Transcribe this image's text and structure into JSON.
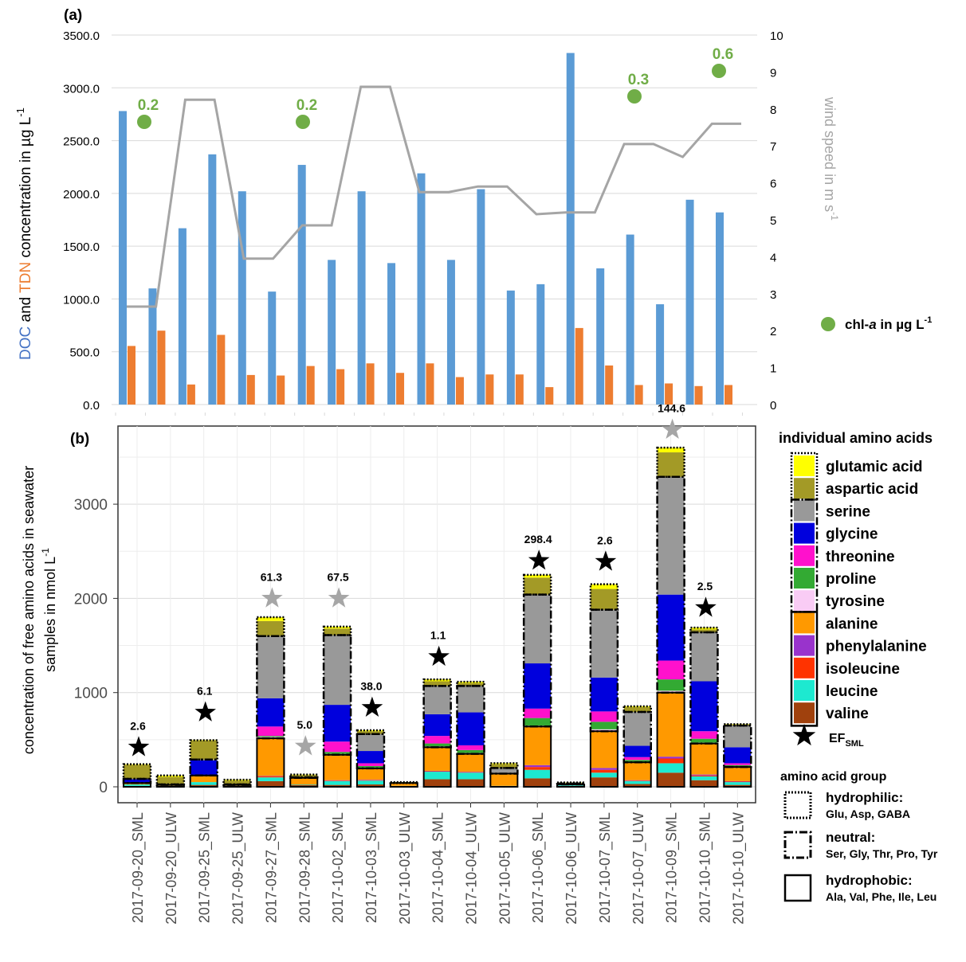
{
  "colors": {
    "doc": "#5b9bd5",
    "tdn": "#ed7d31",
    "wind": "#a5a5a5",
    "chla": "#70ad47",
    "grid": "#d9d9d9",
    "grid_b": "#e6e6e6",
    "axis_grey": "#7f7f7f",
    "star_black": "#000000",
    "star_grey": "#a6a6a6"
  },
  "panel_a": {
    "label": "(a)",
    "ylabel_left_parts": [
      {
        "text": "DOC",
        "color": "#4472c4"
      },
      {
        "text": " and ",
        "color": "#000000"
      },
      {
        "text": "TDN",
        "color": "#ed7d31"
      },
      {
        "text": " concentration in µg L",
        "color": "#000000"
      }
    ],
    "ylabel_left_sup": "-1",
    "ylabel_right": "wind speed in m s",
    "ylabel_right_sup": "-1",
    "legend_chla_prefix": "chl-",
    "legend_chla_italic": "a",
    "legend_chla_suffix": " in µg L",
    "legend_chla_sup": "-1"
  },
  "panel_b": {
    "label": "(b)",
    "ylabel_line1": "concentration of free amino acids in seawater",
    "ylabel_line2": "samples in nmol L",
    "ylabel_sup": "-1",
    "legend_title": "individual amino acids",
    "ef_label": "EF",
    "ef_sub": "SML",
    "group_title": "amino acid group",
    "groups": [
      {
        "name": "hydrophilic:",
        "members": "Glu, Asp, GABA",
        "style": "dotted"
      },
      {
        "name": "neutral:",
        "members": "Ser, Gly, Thr, Pro, Tyr",
        "style": "dashdot"
      },
      {
        "name": "hydrophobic:",
        "members": "Ala, Val, Phe, Ile, Leu",
        "style": "solid"
      }
    ]
  },
  "chart_data": [
    {
      "type": "bar",
      "panel": "a",
      "title": "",
      "ylabel": "DOC and TDN concentration in µg L-1",
      "ylabel_right": "wind speed in m s-1",
      "ylim": [
        0,
        3500
      ],
      "ylim_right": [
        0,
        10
      ],
      "yticks": [
        "0.0",
        "500.0",
        "1000.0",
        "1500.0",
        "2000.0",
        "2500.0",
        "3000.0",
        "3500.0"
      ],
      "yticks_right": [
        "0",
        "1",
        "2",
        "3",
        "4",
        "5",
        "6",
        "7",
        "8",
        "9",
        "10"
      ],
      "n_points": 21,
      "series": [
        {
          "name": "DOC",
          "kind": "bar",
          "values": [
            2780,
            1100,
            1670,
            2370,
            2020,
            1070,
            2270,
            1370,
            2020,
            1340,
            2190,
            1370,
            2040,
            1080,
            1140,
            3330,
            1290,
            1610,
            950,
            1940,
            1820
          ]
        },
        {
          "name": "TDN",
          "kind": "bar",
          "values": [
            555,
            700,
            190,
            660,
            280,
            275,
            365,
            335,
            390,
            300,
            390,
            260,
            285,
            285,
            165,
            725,
            370,
            185,
            200,
            175,
            185
          ]
        },
        {
          "name": "wind speed",
          "kind": "line",
          "values": [
            2.65,
            2.65,
            8.25,
            8.25,
            3.95,
            3.95,
            4.85,
            4.85,
            8.6,
            8.6,
            5.75,
            5.75,
            5.9,
            5.9,
            5.15,
            5.2,
            5.2,
            7.05,
            7.05,
            6.7,
            7.6,
            7.6
          ]
        },
        {
          "name": "chl-a",
          "kind": "point",
          "points": [
            {
              "index": 0,
              "value": 0.2,
              "label": "0.2"
            },
            {
              "index": 6,
              "value": 0.2,
              "label": "0.2"
            },
            {
              "index": 17,
              "value": 0.3,
              "label": "0.3"
            },
            {
              "index": 20,
              "value": 0.6,
              "label": "0.6"
            }
          ]
        }
      ]
    },
    {
      "type": "bar",
      "panel": "b",
      "stacked": true,
      "ylabel": "concentration of free amino acids in seawater samples in nmol L-1",
      "ylim": [
        -150,
        3800
      ],
      "yticks": [
        0,
        1000,
        2000,
        3000
      ],
      "categories": [
        "2017-09-20_SML",
        "2017-09-20_ULW",
        "2017-09-25_SML",
        "2017-09-25_ULW",
        "2017-09-27_SML",
        "2017-09-28_SML",
        "2017-10-02_SML",
        "2017-10-03_SML",
        "2017-10-03_ULW",
        "2017-10-04_SML",
        "2017-10-04_ULW",
        "2017-10-05_ULW",
        "2017-10-06_SML",
        "2017-10-06_ULW",
        "2017-10-07_SML",
        "2017-10-07_ULW",
        "2017-10-09_SML",
        "2017-10-10_SML",
        "2017-10-10_ULW"
      ],
      "species": [
        {
          "name": "valine",
          "color": "#a0410d"
        },
        {
          "name": "leucine",
          "color": "#1de9d0"
        },
        {
          "name": "isoleucine",
          "color": "#ff3300"
        },
        {
          "name": "phenylalanine",
          "color": "#9933cc"
        },
        {
          "name": "alanine",
          "color": "#ff9900"
        },
        {
          "name": "tyrosine",
          "color": "#f9ccf5"
        },
        {
          "name": "proline",
          "color": "#33aa33"
        },
        {
          "name": "threonine",
          "color": "#ff11cc"
        },
        {
          "name": "glycine",
          "color": "#0000dd"
        },
        {
          "name": "serine",
          "color": "#999999"
        },
        {
          "name": "aspartic acid",
          "color": "#a39a26"
        },
        {
          "name": "glutamic acid",
          "color": "#ffff00"
        }
      ],
      "legend_order": [
        "glutamic acid",
        "aspartic acid",
        "serine",
        "glycine",
        "threonine",
        "proline",
        "tyrosine",
        "alanine",
        "phenylalanine",
        "isoleucine",
        "leucine",
        "valine"
      ],
      "legend_styles": [
        "dotted",
        "dotted",
        "dashdot",
        "dashdot",
        "dashdot",
        "dashdot",
        "dashdot",
        "solid",
        "solid",
        "solid",
        "solid",
        "solid"
      ],
      "values": [
        [
          10,
          15,
          0,
          0,
          15,
          0,
          0,
          0,
          40,
          5,
          150,
          5
        ],
        [
          5,
          5,
          0,
          0,
          10,
          0,
          0,
          0,
          0,
          5,
          80,
          15
        ],
        [
          20,
          30,
          0,
          0,
          70,
          0,
          0,
          0,
          160,
          10,
          200,
          5
        ],
        [
          5,
          5,
          0,
          0,
          10,
          0,
          0,
          0,
          0,
          5,
          40,
          10
        ],
        [
          60,
          40,
          10,
          5,
          400,
          15,
          10,
          100,
          300,
          660,
          160,
          40
        ],
        [
          20,
          5,
          0,
          0,
          70,
          0,
          0,
          0,
          0,
          5,
          25,
          5
        ],
        [
          20,
          40,
          5,
          5,
          270,
          10,
          20,
          110,
          390,
          740,
          70,
          20
        ],
        [
          25,
          40,
          5,
          5,
          120,
          5,
          20,
          30,
          130,
          180,
          30,
          10
        ],
        [
          5,
          5,
          0,
          0,
          30,
          0,
          0,
          0,
          0,
          0,
          5,
          5
        ],
        [
          80,
          80,
          5,
          5,
          250,
          10,
          30,
          80,
          230,
          300,
          50,
          20
        ],
        [
          80,
          70,
          5,
          5,
          190,
          10,
          30,
          50,
          350,
          280,
          30,
          15
        ],
        [
          5,
          5,
          0,
          0,
          130,
          0,
          0,
          0,
          0,
          60,
          40,
          10
        ],
        [
          90,
          90,
          30,
          20,
          410,
          10,
          80,
          100,
          480,
          730,
          180,
          30
        ],
        [
          10,
          10,
          0,
          0,
          5,
          0,
          0,
          0,
          0,
          10,
          5,
          5
        ],
        [
          100,
          50,
          30,
          20,
          390,
          20,
          80,
          110,
          360,
          720,
          220,
          50
        ],
        [
          30,
          30,
          5,
          5,
          190,
          5,
          20,
          30,
          120,
          360,
          50,
          10
        ],
        [
          150,
          100,
          50,
          20,
          680,
          20,
          120,
          200,
          700,
          1250,
          260,
          50
        ],
        [
          70,
          40,
          10,
          10,
          330,
          10,
          40,
          80,
          530,
          520,
          30,
          20
        ],
        [
          20,
          30,
          5,
          5,
          150,
          5,
          15,
          20,
          170,
          230,
          10,
          5
        ]
      ],
      "ef_sml": [
        {
          "category": "2017-09-20_SML",
          "label": "2.6",
          "color": "black",
          "star_value": 420
        },
        {
          "category": "2017-09-25_SML",
          "label": "6.1",
          "color": "black",
          "star_value": 790
        },
        {
          "category": "2017-09-27_SML",
          "label": "61.3",
          "color": "grey",
          "star_value": 2000
        },
        {
          "category": "2017-09-28_SML",
          "label": "5.0",
          "color": "grey",
          "star_value": 430
        },
        {
          "category": "2017-10-02_SML",
          "label": "67.5",
          "color": "grey",
          "star_value": 2000
        },
        {
          "category": "2017-10-03_SML",
          "label": "38.0",
          "color": "black",
          "star_value": 840
        },
        {
          "category": "2017-10-04_SML",
          "label": "1.1",
          "color": "black",
          "star_value": 1380
        },
        {
          "category": "2017-10-06_SML",
          "label": "298.4",
          "color": "black",
          "star_value": 2400
        },
        {
          "category": "2017-10-07_SML",
          "label": "2.6",
          "color": "black",
          "star_value": 2390
        },
        {
          "category": "2017-10-09_SML",
          "label": "144.6",
          "color": "grey",
          "star_value": 3790
        },
        {
          "category": "2017-10-10_SML",
          "label": "2.5",
          "color": "black",
          "star_value": 1900
        }
      ]
    }
  ]
}
